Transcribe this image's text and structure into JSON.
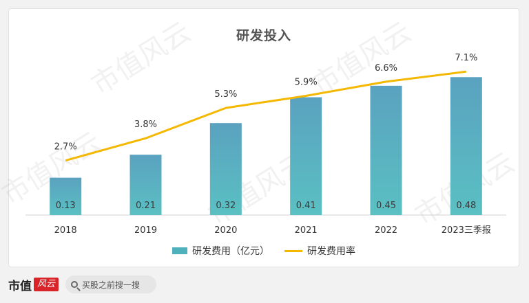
{
  "chart_data": {
    "type": "bar",
    "title": "研发投入",
    "categories": [
      "2018",
      "2019",
      "2020",
      "2021",
      "2022",
      "2023三季报"
    ],
    "series": [
      {
        "name": "研发费用（亿元）",
        "type": "bar",
        "values": [
          0.13,
          0.21,
          0.32,
          0.41,
          0.45,
          0.48
        ],
        "labels": [
          "0.13",
          "0.21",
          "0.32",
          "0.41",
          "0.45",
          "0.48"
        ],
        "color": "#4fb1bb",
        "ylim": [
          0,
          0.55
        ]
      },
      {
        "name": "研发费用率",
        "type": "line",
        "values": [
          2.7,
          3.8,
          5.3,
          5.9,
          6.6,
          7.1
        ],
        "labels": [
          "2.7%",
          "3.8%",
          "5.3%",
          "5.9%",
          "6.6%",
          "7.1%"
        ],
        "color": "#f5b800",
        "ylim": [
          0,
          8.5
        ]
      }
    ],
    "grid": false,
    "legend": "bottom-center"
  },
  "watermark": {
    "text": "市值风云"
  },
  "footer": {
    "brand": "市值",
    "brand_seal": "风云",
    "search_placeholder": "买股之前搜一搜"
  },
  "colors": {
    "bar_top": "#5aa2c0",
    "bar_bottom": "#5ac0c2",
    "line": "#f5b800",
    "axis": "#d0d0d0",
    "text": "#333333"
  }
}
